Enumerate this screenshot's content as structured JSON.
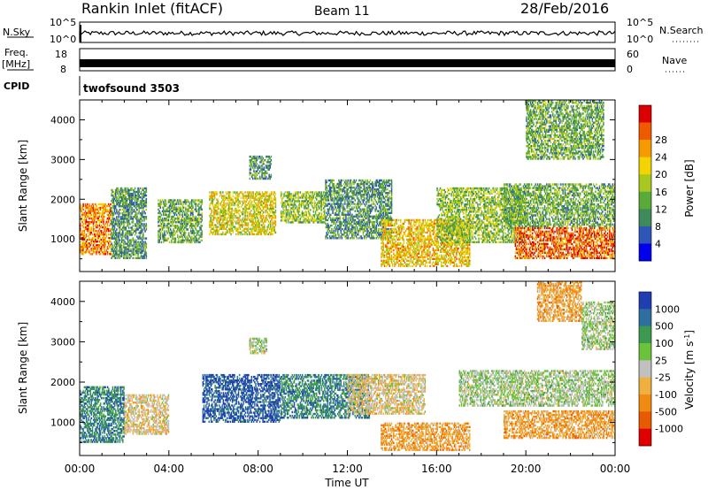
{
  "header": {
    "title": "Rankin Inlet (fitACF)",
    "beam": "Beam 11",
    "date": "28/Feb/2016"
  },
  "strips": {
    "nsky_label": "N.Sky",
    "nsky_ticks": [
      "10^5",
      "10^0"
    ],
    "nsearch_label": "N.Search",
    "nsearch_ticks": [
      "10^5",
      "10^0"
    ],
    "freq_label_line1": "Freq.",
    "freq_label_line2": "[MHz]",
    "freq_ticks": [
      "18",
      "8"
    ],
    "nave_label": "Nave",
    "nave_ticks": [
      "60",
      "0"
    ],
    "cpid_label": "CPID",
    "cpid_value": "twofsound 3503"
  },
  "chart_data": [
    {
      "type": "heatmap",
      "name": "power",
      "ylabel": "Slant Range [km]",
      "xlabel": "",
      "ylim": [
        180,
        4500
      ],
      "xlim_hours": [
        0,
        24
      ],
      "x_ticks": [
        "00:00",
        "04:00",
        "08:00",
        "12:00",
        "16:00",
        "20:00",
        "00:00"
      ],
      "y_ticks": [
        1000,
        2000,
        3000,
        4000
      ],
      "colorbar_label": "Power [dB]",
      "colorbar_ticks": [
        4,
        8,
        12,
        16,
        20,
        24,
        28
      ],
      "colorbar_colors": [
        "#0000ee",
        "#2f55b8",
        "#3f8a5a",
        "#5aaa3a",
        "#a8c81f",
        "#f1d400",
        "#f59a00",
        "#ef5a00",
        "#dd0000"
      ],
      "regions": [
        {
          "t0": 0.0,
          "t1": 1.4,
          "r0": 600,
          "r1": 1900,
          "value": 24
        },
        {
          "t0": 1.4,
          "t1": 3.0,
          "r0": 500,
          "r1": 2300,
          "value": 10
        },
        {
          "t0": 3.5,
          "t1": 5.5,
          "r0": 900,
          "r1": 2000,
          "value": 12
        },
        {
          "t0": 5.8,
          "t1": 8.8,
          "r0": 1100,
          "r1": 2200,
          "value": 18
        },
        {
          "t0": 7.6,
          "t1": 8.6,
          "r0": 2500,
          "r1": 3100,
          "value": 10
        },
        {
          "t0": 9.0,
          "t1": 11.0,
          "r0": 1400,
          "r1": 2200,
          "value": 14
        },
        {
          "t0": 11.0,
          "t1": 14.0,
          "r0": 1000,
          "r1": 2500,
          "value": 10
        },
        {
          "t0": 13.5,
          "t1": 17.5,
          "r0": 300,
          "r1": 1500,
          "value": 20
        },
        {
          "t0": 16.0,
          "t1": 20.0,
          "r0": 900,
          "r1": 2300,
          "value": 14
        },
        {
          "t0": 19.5,
          "t1": 24.0,
          "r0": 500,
          "r1": 1300,
          "value": 26
        },
        {
          "t0": 19.0,
          "t1": 24.0,
          "r0": 1300,
          "r1": 2400,
          "value": 12
        },
        {
          "t0": 20.0,
          "t1": 23.5,
          "r0": 3000,
          "r1": 4500,
          "value": 12
        }
      ]
    },
    {
      "type": "heatmap",
      "name": "velocity",
      "ylabel": "Slant Range [km]",
      "xlabel": "Time UT",
      "ylim": [
        180,
        4500
      ],
      "xlim_hours": [
        0,
        24
      ],
      "x_ticks": [
        "00:00",
        "04:00",
        "08:00",
        "12:00",
        "16:00",
        "20:00",
        "00:00"
      ],
      "y_ticks": [
        1000,
        2000,
        3000,
        4000
      ],
      "colorbar_label": "Velocity [m s",
      "colorbar_label_sup": "-1",
      "colorbar_label_end": "]",
      "colorbar_ticks": [
        "1000",
        "500",
        "100",
        "25",
        "-25",
        "-100",
        "-500",
        "-1000"
      ],
      "colorbar_colors": [
        "#1f3fb0",
        "#2e6fa0",
        "#3b9a50",
        "#6cc23a",
        "#c0c0c0",
        "#f0b040",
        "#f08a10",
        "#e85a00",
        "#e00000"
      ],
      "regions": [
        {
          "t0": 0.0,
          "t1": 2.0,
          "r0": 500,
          "r1": 1900,
          "value": 100
        },
        {
          "t0": 2.0,
          "t1": 4.0,
          "r0": 700,
          "r1": 1700,
          "value": -100
        },
        {
          "t0": 5.5,
          "t1": 9.0,
          "r0": 1000,
          "r1": 2200,
          "value": 500
        },
        {
          "t0": 7.6,
          "t1": 8.4,
          "r0": 2700,
          "r1": 3100,
          "value": 0
        },
        {
          "t0": 9.0,
          "t1": 13.0,
          "r0": 1100,
          "r1": 2200,
          "value": 100
        },
        {
          "t0": 12.0,
          "t1": 15.5,
          "r0": 1200,
          "r1": 2200,
          "value": -100
        },
        {
          "t0": 13.5,
          "t1": 17.5,
          "r0": 300,
          "r1": 1000,
          "value": -500
        },
        {
          "t0": 17.0,
          "t1": 24.0,
          "r0": 1400,
          "r1": 2300,
          "value": 0
        },
        {
          "t0": 19.0,
          "t1": 24.0,
          "r0": 600,
          "r1": 1300,
          "value": -500
        },
        {
          "t0": 20.5,
          "t1": 22.5,
          "r0": 3500,
          "r1": 4500,
          "value": -500
        },
        {
          "t0": 22.5,
          "t1": 24.0,
          "r0": 2800,
          "r1": 4000,
          "value": 0
        }
      ]
    }
  ]
}
